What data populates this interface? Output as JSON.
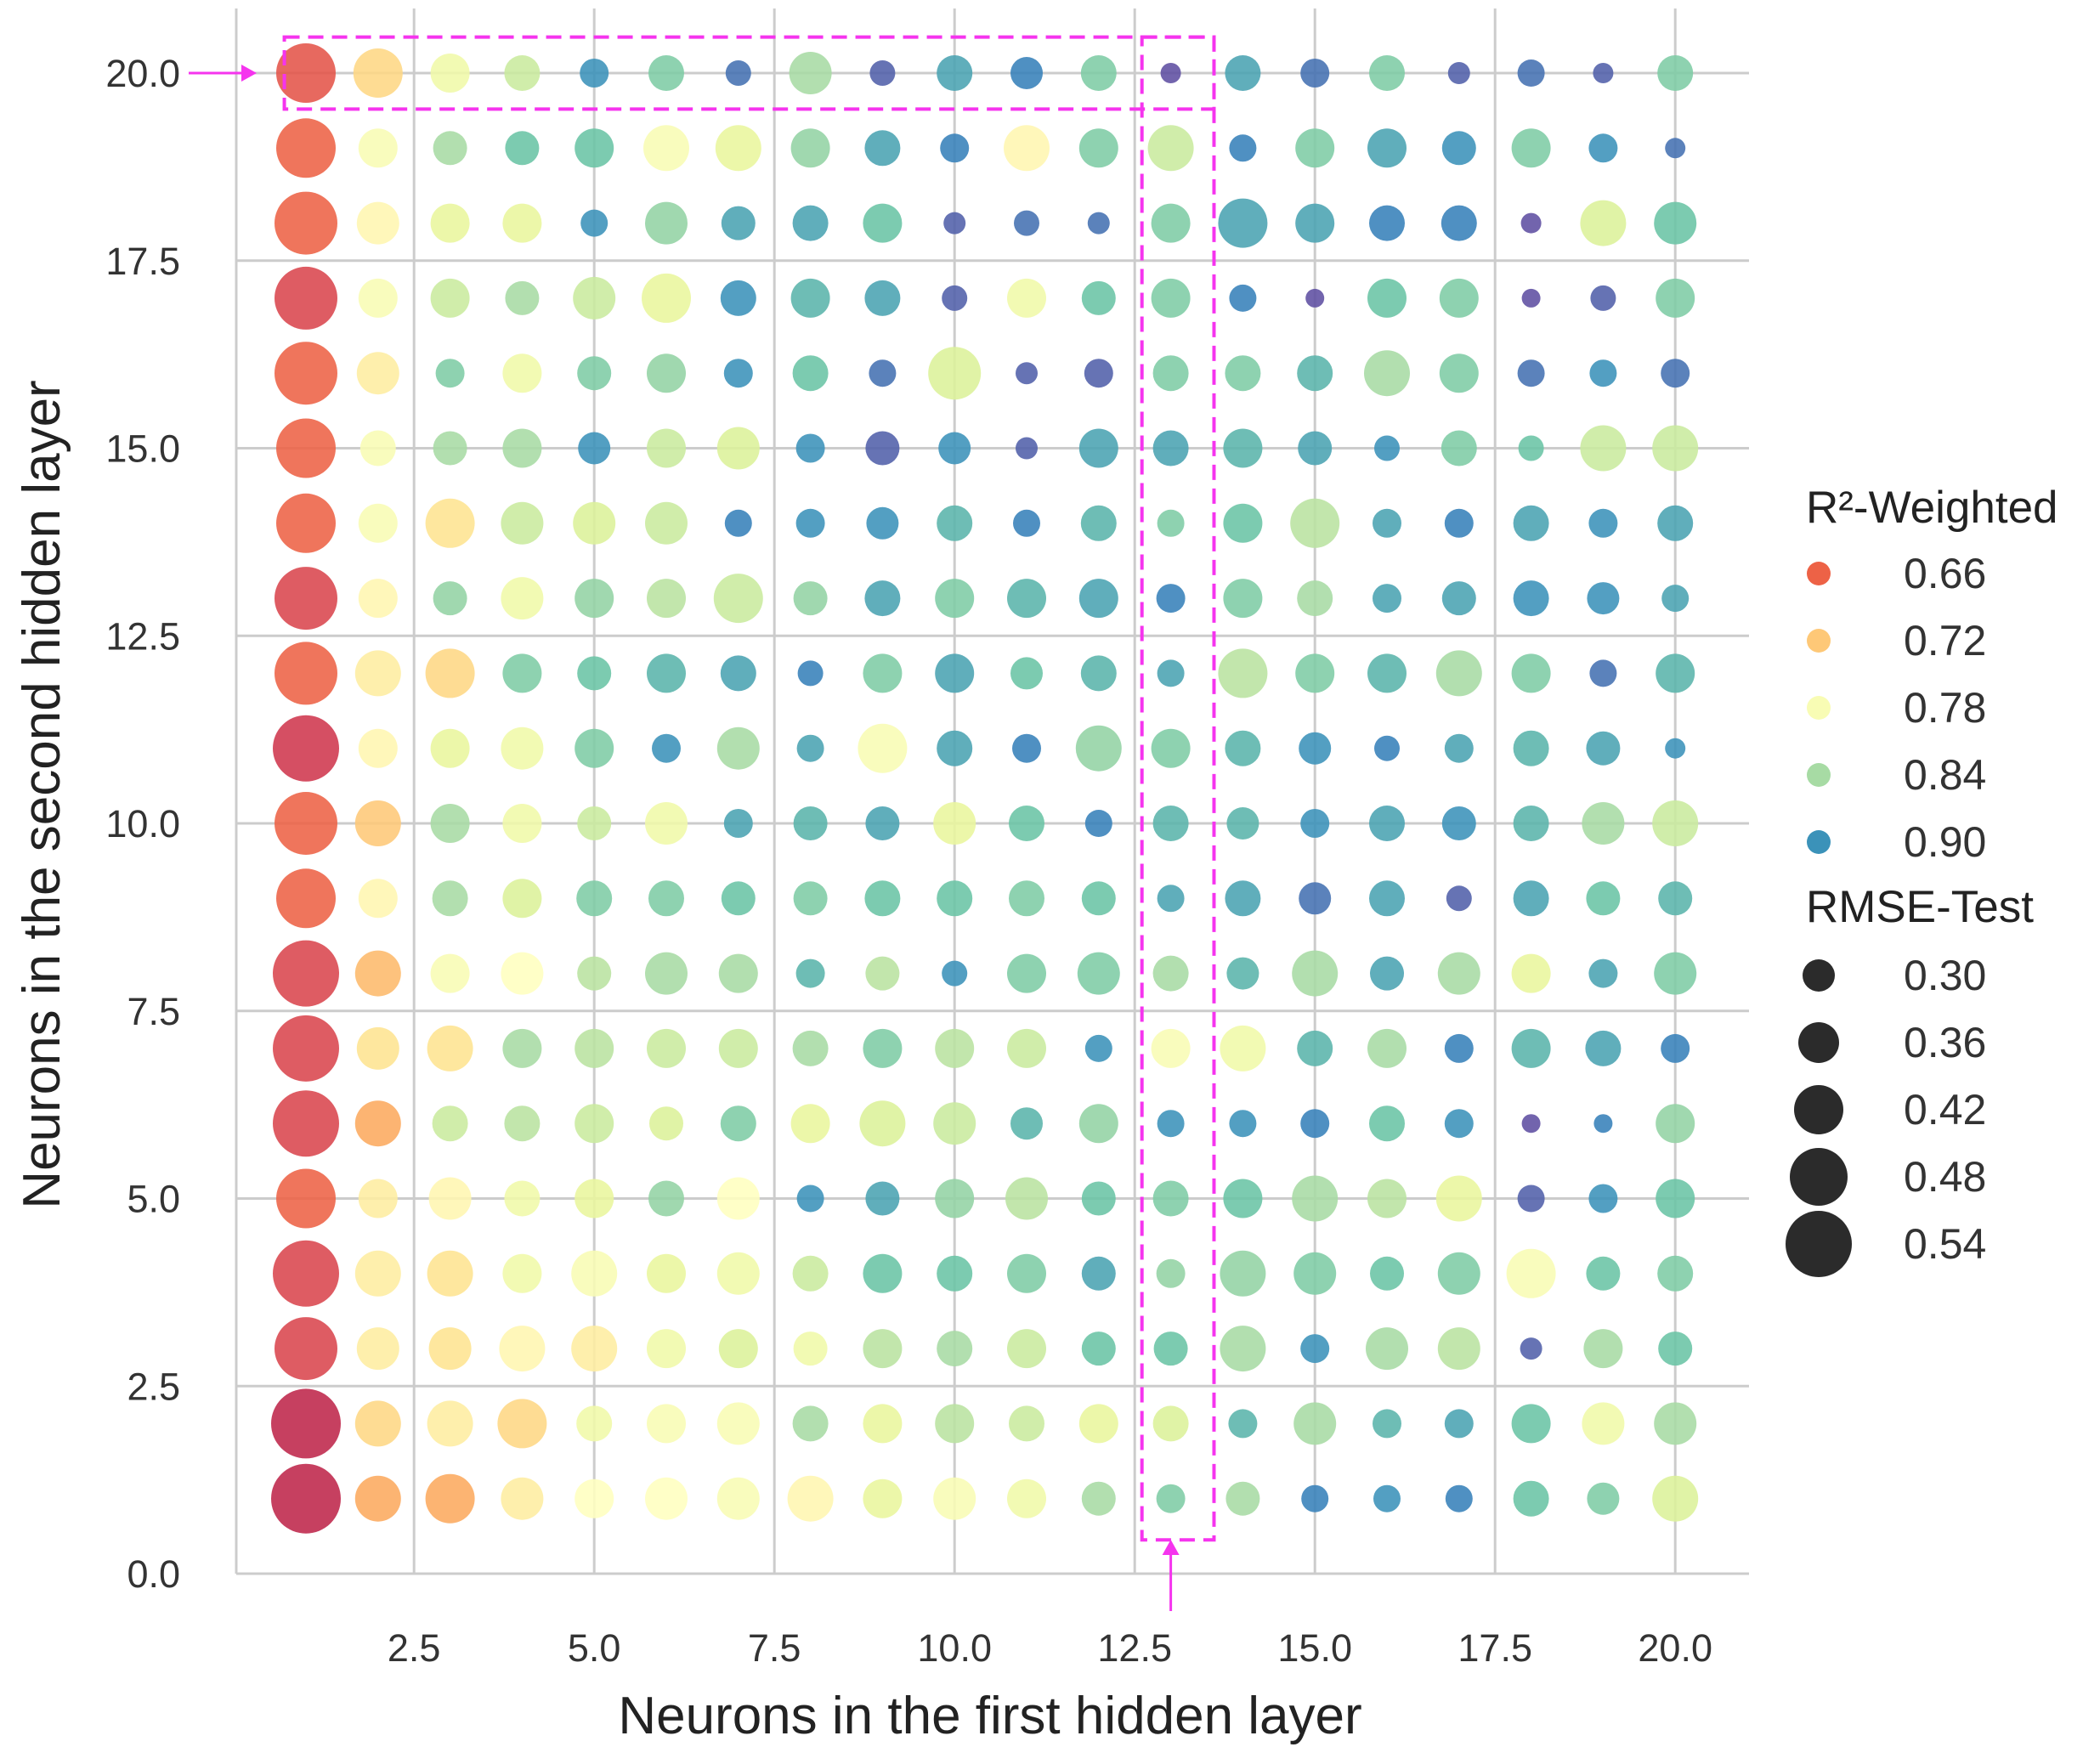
{
  "chart_data": {
    "type": "scatter",
    "title": "",
    "xlabel": "Neurons in the first hidden layer",
    "ylabel": "Neurons in the second hidden layer",
    "xlim": [
      0,
      21
    ],
    "ylim": [
      0,
      21
    ],
    "xticks": [
      "2.5",
      "5.0",
      "7.5",
      "10.0",
      "12.5",
      "15.0",
      "17.5",
      "20.0"
    ],
    "yticks": [
      "0.0",
      "2.5",
      "5.0",
      "7.5",
      "10.0",
      "12.5",
      "15.0",
      "17.5",
      "20.0"
    ],
    "xtick_values": [
      2.5,
      5,
      7.5,
      10,
      12.5,
      15,
      17.5,
      20
    ],
    "ytick_values": [
      0,
      2.5,
      5,
      7.5,
      10,
      12.5,
      15,
      17.5,
      20
    ],
    "grid": true,
    "legend_position": "right",
    "hue": {
      "name": "R²-Weighted",
      "levels": [
        "0.66",
        "0.72",
        "0.78",
        "0.84",
        "0.90"
      ],
      "level_values": [
        0.66,
        0.72,
        0.78,
        0.84,
        0.9
      ],
      "domain": [
        0.6,
        0.94
      ],
      "palette": "Spectral"
    },
    "size": {
      "name": "RMSE-Test",
      "levels": [
        "0.30",
        "0.36",
        "0.42",
        "0.48",
        "0.54"
      ],
      "level_values": [
        0.3,
        0.36,
        0.42,
        0.48,
        0.54
      ],
      "domain": [
        0.26,
        0.56
      ]
    },
    "x": [
      1,
      2,
      3,
      4,
      5,
      6,
      7,
      8,
      9,
      10,
      11,
      12,
      13,
      14,
      15,
      16,
      17,
      18,
      19,
      20
    ],
    "y": [
      1,
      2,
      3,
      4,
      5,
      6,
      7,
      8,
      9,
      10,
      11,
      12,
      13,
      14,
      15,
      16,
      17,
      18,
      19,
      20
    ],
    "r2_grid_rows_y20_to_y1": [
      [
        0.65,
        0.73,
        0.79,
        0.82,
        0.9,
        0.86,
        0.92,
        0.84,
        0.93,
        0.89,
        0.91,
        0.86,
        0.94,
        0.89,
        0.92,
        0.86,
        0.93,
        0.92,
        0.93,
        0.86
      ],
      [
        0.66,
        0.78,
        0.84,
        0.87,
        0.87,
        0.78,
        0.8,
        0.85,
        0.89,
        0.91,
        0.76,
        0.86,
        0.82,
        0.91,
        0.86,
        0.89,
        0.9,
        0.86,
        0.9,
        0.92
      ],
      [
        0.66,
        0.76,
        0.8,
        0.8,
        0.9,
        0.85,
        0.89,
        0.89,
        0.87,
        0.93,
        0.92,
        0.92,
        0.86,
        0.89,
        0.89,
        0.91,
        0.91,
        0.94,
        0.81,
        0.87
      ],
      [
        0.64,
        0.78,
        0.82,
        0.84,
        0.82,
        0.8,
        0.9,
        0.88,
        0.89,
        0.93,
        0.79,
        0.87,
        0.86,
        0.91,
        0.94,
        0.87,
        0.86,
        0.94,
        0.93,
        0.86
      ],
      [
        0.66,
        0.75,
        0.86,
        0.79,
        0.86,
        0.85,
        0.9,
        0.87,
        0.92,
        0.81,
        0.93,
        0.93,
        0.86,
        0.86,
        0.88,
        0.84,
        0.86,
        0.92,
        0.9,
        0.92
      ],
      [
        0.66,
        0.78,
        0.84,
        0.84,
        0.9,
        0.82,
        0.81,
        0.9,
        0.93,
        0.9,
        0.93,
        0.89,
        0.89,
        0.88,
        0.89,
        0.9,
        0.86,
        0.87,
        0.82,
        0.82
      ],
      [
        0.66,
        0.78,
        0.74,
        0.82,
        0.81,
        0.82,
        0.91,
        0.9,
        0.9,
        0.88,
        0.91,
        0.88,
        0.86,
        0.87,
        0.83,
        0.89,
        0.91,
        0.89,
        0.9,
        0.89
      ],
      [
        0.64,
        0.76,
        0.85,
        0.79,
        0.85,
        0.83,
        0.82,
        0.85,
        0.89,
        0.86,
        0.88,
        0.89,
        0.91,
        0.86,
        0.84,
        0.89,
        0.89,
        0.9,
        0.9,
        0.89
      ],
      [
        0.66,
        0.75,
        0.73,
        0.86,
        0.87,
        0.88,
        0.89,
        0.91,
        0.86,
        0.89,
        0.87,
        0.88,
        0.89,
        0.83,
        0.86,
        0.88,
        0.84,
        0.86,
        0.92,
        0.88
      ],
      [
        0.63,
        0.76,
        0.8,
        0.79,
        0.86,
        0.9,
        0.84,
        0.89,
        0.78,
        0.89,
        0.91,
        0.85,
        0.86,
        0.88,
        0.9,
        0.91,
        0.89,
        0.88,
        0.89,
        0.9
      ],
      [
        0.66,
        0.72,
        0.84,
        0.79,
        0.82,
        0.79,
        0.89,
        0.88,
        0.89,
        0.8,
        0.87,
        0.91,
        0.88,
        0.88,
        0.9,
        0.89,
        0.9,
        0.88,
        0.84,
        0.82
      ],
      [
        0.66,
        0.76,
        0.84,
        0.81,
        0.86,
        0.86,
        0.87,
        0.86,
        0.87,
        0.87,
        0.86,
        0.87,
        0.89,
        0.89,
        0.92,
        0.89,
        0.93,
        0.89,
        0.87,
        0.88
      ],
      [
        0.64,
        0.71,
        0.78,
        0.77,
        0.83,
        0.84,
        0.84,
        0.88,
        0.83,
        0.9,
        0.86,
        0.86,
        0.84,
        0.88,
        0.84,
        0.89,
        0.84,
        0.8,
        0.89,
        0.86
      ],
      [
        0.64,
        0.74,
        0.74,
        0.84,
        0.83,
        0.82,
        0.82,
        0.84,
        0.86,
        0.83,
        0.82,
        0.9,
        0.78,
        0.79,
        0.88,
        0.84,
        0.91,
        0.88,
        0.89,
        0.91
      ],
      [
        0.64,
        0.7,
        0.82,
        0.83,
        0.82,
        0.81,
        0.86,
        0.8,
        0.81,
        0.82,
        0.88,
        0.85,
        0.9,
        0.9,
        0.91,
        0.87,
        0.9,
        0.94,
        0.91,
        0.85
      ],
      [
        0.66,
        0.75,
        0.76,
        0.79,
        0.8,
        0.85,
        0.77,
        0.9,
        0.89,
        0.85,
        0.83,
        0.87,
        0.86,
        0.87,
        0.84,
        0.83,
        0.8,
        0.93,
        0.9,
        0.87
      ],
      [
        0.64,
        0.75,
        0.74,
        0.79,
        0.78,
        0.8,
        0.79,
        0.82,
        0.87,
        0.87,
        0.86,
        0.89,
        0.85,
        0.85,
        0.86,
        0.87,
        0.86,
        0.78,
        0.87,
        0.86
      ],
      [
        0.64,
        0.75,
        0.74,
        0.76,
        0.75,
        0.79,
        0.81,
        0.79,
        0.83,
        0.84,
        0.82,
        0.87,
        0.87,
        0.84,
        0.9,
        0.84,
        0.83,
        0.93,
        0.84,
        0.87
      ],
      [
        0.62,
        0.73,
        0.75,
        0.73,
        0.79,
        0.78,
        0.78,
        0.84,
        0.8,
        0.83,
        0.82,
        0.8,
        0.81,
        0.88,
        0.84,
        0.88,
        0.89,
        0.87,
        0.79,
        0.84
      ],
      [
        0.62,
        0.7,
        0.7,
        0.75,
        0.77,
        0.77,
        0.78,
        0.76,
        0.8,
        0.78,
        0.79,
        0.84,
        0.86,
        0.84,
        0.91,
        0.9,
        0.91,
        0.87,
        0.86,
        0.81
      ]
    ],
    "rmse_grid_rows_y20_to_y1": [
      [
        0.5,
        0.44,
        0.38,
        0.36,
        0.32,
        0.36,
        0.3,
        0.4,
        0.3,
        0.36,
        0.34,
        0.36,
        0.27,
        0.36,
        0.32,
        0.36,
        0.28,
        0.31,
        0.27,
        0.36
      ],
      [
        0.5,
        0.38,
        0.35,
        0.35,
        0.38,
        0.42,
        0.42,
        0.38,
        0.36,
        0.32,
        0.42,
        0.38,
        0.42,
        0.31,
        0.38,
        0.38,
        0.35,
        0.38,
        0.32,
        0.27
      ],
      [
        0.52,
        0.4,
        0.38,
        0.38,
        0.31,
        0.4,
        0.35,
        0.36,
        0.38,
        0.28,
        0.3,
        0.28,
        0.38,
        0.44,
        0.38,
        0.36,
        0.36,
        0.27,
        0.42,
        0.4
      ],
      [
        0.52,
        0.38,
        0.38,
        0.35,
        0.4,
        0.44,
        0.36,
        0.38,
        0.36,
        0.3,
        0.38,
        0.35,
        0.38,
        0.31,
        0.26,
        0.38,
        0.38,
        0.26,
        0.3,
        0.38
      ],
      [
        0.52,
        0.4,
        0.32,
        0.38,
        0.35,
        0.38,
        0.32,
        0.36,
        0.31,
        0.46,
        0.28,
        0.32,
        0.36,
        0.36,
        0.36,
        0.42,
        0.38,
        0.31,
        0.31,
        0.32
      ],
      [
        0.5,
        0.36,
        0.35,
        0.38,
        0.34,
        0.38,
        0.4,
        0.32,
        0.35,
        0.34,
        0.28,
        0.38,
        0.36,
        0.38,
        0.35,
        0.3,
        0.36,
        0.3,
        0.42,
        0.42
      ],
      [
        0.5,
        0.38,
        0.44,
        0.4,
        0.4,
        0.4,
        0.31,
        0.32,
        0.34,
        0.36,
        0.31,
        0.36,
        0.31,
        0.38,
        0.44,
        0.32,
        0.32,
        0.36,
        0.32,
        0.36
      ],
      [
        0.52,
        0.38,
        0.35,
        0.4,
        0.38,
        0.38,
        0.44,
        0.35,
        0.36,
        0.38,
        0.38,
        0.38,
        0.32,
        0.38,
        0.36,
        0.32,
        0.35,
        0.36,
        0.34,
        0.31
      ],
      [
        0.52,
        0.42,
        0.44,
        0.38,
        0.35,
        0.38,
        0.36,
        0.3,
        0.38,
        0.38,
        0.34,
        0.36,
        0.31,
        0.44,
        0.38,
        0.38,
        0.42,
        0.38,
        0.31,
        0.38
      ],
      [
        0.54,
        0.38,
        0.38,
        0.4,
        0.38,
        0.32,
        0.4,
        0.31,
        0.44,
        0.36,
        0.32,
        0.42,
        0.38,
        0.36,
        0.34,
        0.3,
        0.32,
        0.36,
        0.35,
        0.27
      ],
      [
        0.52,
        0.42,
        0.38,
        0.38,
        0.35,
        0.4,
        0.32,
        0.35,
        0.35,
        0.4,
        0.36,
        0.31,
        0.36,
        0.34,
        0.32,
        0.36,
        0.35,
        0.36,
        0.4,
        0.42
      ],
      [
        0.5,
        0.38,
        0.36,
        0.38,
        0.36,
        0.36,
        0.35,
        0.35,
        0.36,
        0.36,
        0.36,
        0.35,
        0.31,
        0.36,
        0.34,
        0.36,
        0.3,
        0.36,
        0.35,
        0.35
      ],
      [
        0.54,
        0.42,
        0.38,
        0.4,
        0.35,
        0.4,
        0.38,
        0.32,
        0.35,
        0.3,
        0.38,
        0.4,
        0.36,
        0.34,
        0.42,
        0.35,
        0.4,
        0.38,
        0.32,
        0.4
      ],
      [
        0.54,
        0.4,
        0.42,
        0.38,
        0.38,
        0.38,
        0.38,
        0.36,
        0.38,
        0.38,
        0.38,
        0.31,
        0.38,
        0.42,
        0.36,
        0.38,
        0.32,
        0.38,
        0.36,
        0.32
      ],
      [
        0.54,
        0.42,
        0.36,
        0.36,
        0.38,
        0.35,
        0.36,
        0.38,
        0.42,
        0.4,
        0.34,
        0.38,
        0.31,
        0.31,
        0.32,
        0.36,
        0.32,
        0.26,
        0.26,
        0.38
      ],
      [
        0.5,
        0.38,
        0.4,
        0.36,
        0.38,
        0.36,
        0.4,
        0.31,
        0.35,
        0.38,
        0.4,
        0.35,
        0.36,
        0.38,
        0.42,
        0.38,
        0.42,
        0.31,
        0.32,
        0.38
      ],
      [
        0.54,
        0.42,
        0.42,
        0.38,
        0.42,
        0.38,
        0.4,
        0.36,
        0.38,
        0.36,
        0.38,
        0.35,
        0.32,
        0.42,
        0.4,
        0.35,
        0.4,
        0.44,
        0.35,
        0.36
      ],
      [
        0.52,
        0.4,
        0.4,
        0.42,
        0.42,
        0.38,
        0.38,
        0.35,
        0.38,
        0.36,
        0.38,
        0.35,
        0.35,
        0.42,
        0.32,
        0.4,
        0.4,
        0.28,
        0.38,
        0.35
      ],
      [
        0.56,
        0.42,
        0.42,
        0.44,
        0.36,
        0.38,
        0.4,
        0.36,
        0.38,
        0.38,
        0.36,
        0.38,
        0.36,
        0.32,
        0.4,
        0.32,
        0.32,
        0.38,
        0.4,
        0.4
      ],
      [
        0.56,
        0.42,
        0.44,
        0.4,
        0.38,
        0.4,
        0.4,
        0.42,
        0.38,
        0.4,
        0.38,
        0.35,
        0.32,
        0.35,
        0.31,
        0.31,
        0.31,
        0.36,
        0.34,
        0.42
      ]
    ],
    "highlight_color": "#f534ee"
  }
}
